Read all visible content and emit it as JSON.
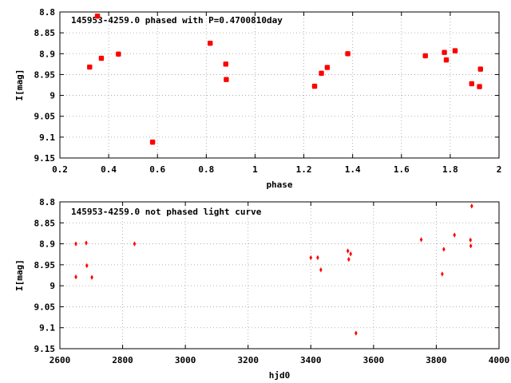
{
  "chart_data": [
    {
      "type": "scatter",
      "title": "145953-4259.0 phased with P=0.4700810day",
      "xlabel": "phase",
      "ylabel": "I[mag]",
      "xlim": [
        0.2,
        2.0
      ],
      "ylim": [
        9.15,
        8.8
      ],
      "y_inverted": true,
      "grid": true,
      "x_ticks": [
        "0.2",
        "0.4",
        "0.6",
        "0.8",
        "1",
        "1.2",
        "1.4",
        "1.6",
        "1.8",
        "2"
      ],
      "y_ticks": [
        "8.8",
        "8.85",
        "8.9",
        "8.95",
        "9",
        "9.05",
        "9.1",
        "9.15"
      ],
      "marker_color": "#ff0000",
      "x": [
        0.322,
        0.354,
        0.37,
        0.44,
        0.58,
        0.816,
        0.88,
        0.882,
        1.244,
        1.272,
        1.296,
        1.38,
        1.698,
        1.776,
        1.784,
        1.82,
        1.888,
        1.92,
        1.924
      ],
      "y": [
        8.932,
        8.81,
        8.911,
        8.901,
        9.112,
        8.875,
        8.925,
        8.962,
        8.978,
        8.947,
        8.933,
        8.9,
        8.905,
        8.897,
        8.915,
        8.893,
        8.972,
        8.979,
        8.937
      ]
    },
    {
      "type": "scatter",
      "title": "145953-4259.0 not phased light curve",
      "xlabel": "hjd0",
      "ylabel": "I[mag]",
      "xlim": [
        2600,
        4000
      ],
      "ylim": [
        9.15,
        8.8
      ],
      "y_inverted": true,
      "grid": true,
      "x_ticks": [
        "2600",
        "2800",
        "3000",
        "3200",
        "3400",
        "3600",
        "3800",
        "4000"
      ],
      "y_ticks": [
        "8.8",
        "8.85",
        "8.9",
        "8.95",
        "9",
        "9.05",
        "9.1",
        "9.15"
      ],
      "marker_color": "#ff0000",
      "x": [
        2651,
        2651,
        2684,
        2686,
        2702,
        2838,
        3400,
        3422,
        3432,
        3518,
        3521,
        3527,
        3544,
        3752,
        3819,
        3824,
        3858,
        3909,
        3910,
        3913
      ],
      "y": [
        8.9,
        8.979,
        8.898,
        8.952,
        8.98,
        8.9,
        8.933,
        8.933,
        8.962,
        8.917,
        8.937,
        8.924,
        9.113,
        8.89,
        8.972,
        8.913,
        8.879,
        8.891,
        8.905,
        8.81
      ]
    }
  ]
}
